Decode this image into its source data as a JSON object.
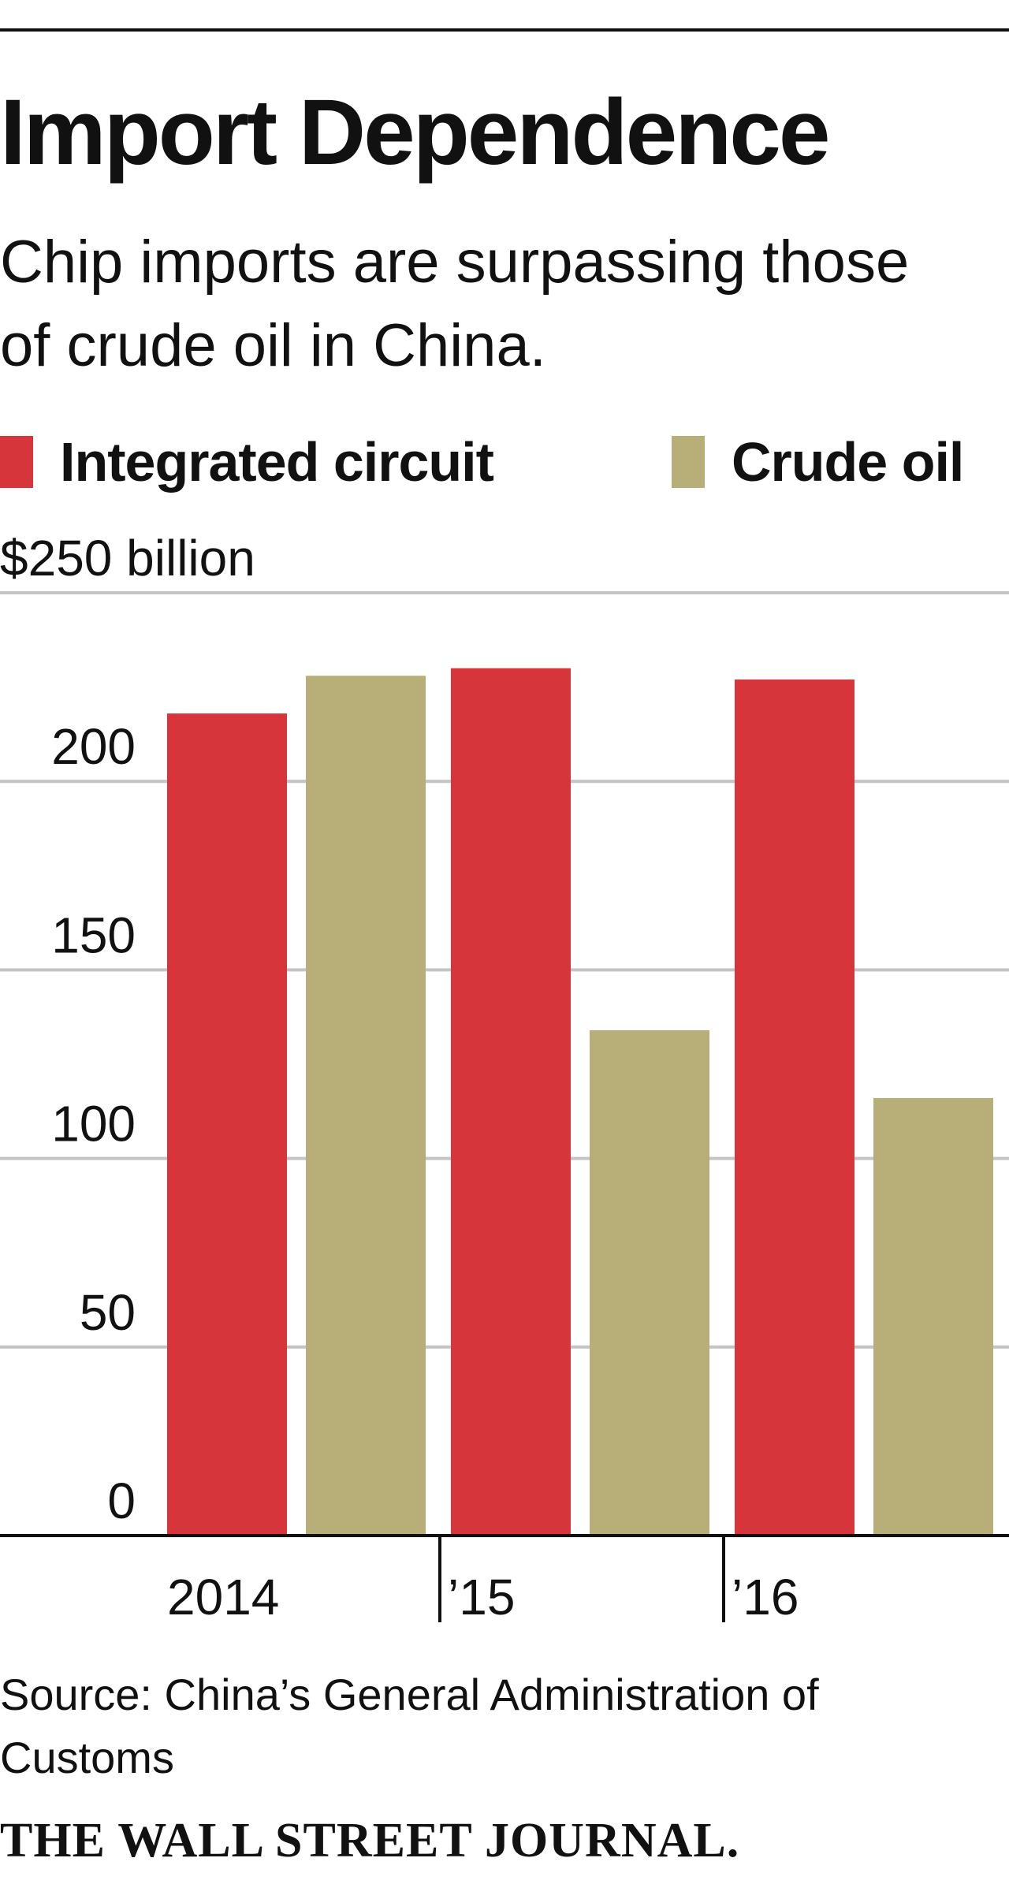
{
  "header": {
    "title": "Import Dependence",
    "subtitle": "Chip imports are surpassing those of crude oil in China."
  },
  "legend": [
    {
      "label": "Integrated circuit",
      "color": "#d6363b"
    },
    {
      "label": "Crude oil",
      "color": "#b8ae78"
    }
  ],
  "chart_data": {
    "type": "bar",
    "categories": [
      "2014",
      "’15",
      "’16"
    ],
    "series": [
      {
        "name": "Integrated circuit",
        "color": "#d6363b",
        "values": [
          218,
          230,
          227
        ]
      },
      {
        "name": "Crude oil",
        "color": "#b8ae78",
        "values": [
          228,
          134,
          116
        ]
      }
    ],
    "ylim": [
      0,
      250
    ],
    "yticks": [
      0,
      50,
      100,
      150,
      200,
      250
    ],
    "ytick_labels": [
      "0",
      "50",
      "100",
      "150",
      "200",
      "$250 billion"
    ],
    "grid": true,
    "legend_position": "top"
  },
  "footer": {
    "source": "Source: China’s General Administration of Customs",
    "masthead": "THE WALL STREET JOURNAL."
  }
}
